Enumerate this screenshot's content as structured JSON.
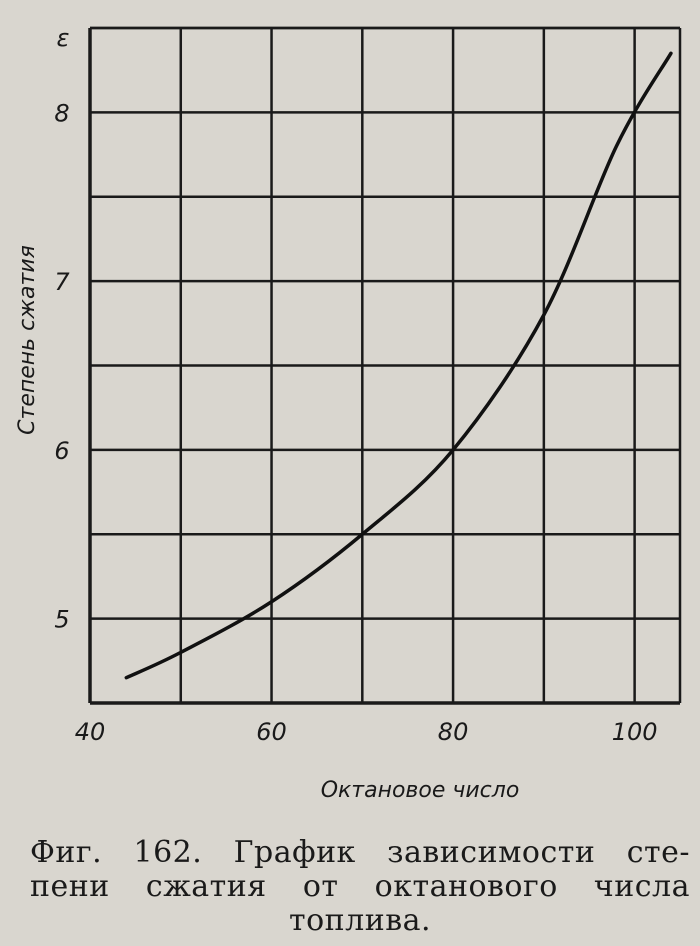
{
  "chart_data": {
    "type": "line",
    "xlabel": "Октановое число",
    "ylabel": "Степень сжатия",
    "y_axis_symbol": "ε",
    "xlim": [
      40,
      105
    ],
    "ylim": [
      4.5,
      8.5
    ],
    "x_grid_step": 10,
    "y_grid_step": 0.5,
    "grid": true,
    "x_ticks": [
      {
        "value": 40,
        "label": "40"
      },
      {
        "value": 60,
        "label": "60"
      },
      {
        "value": 80,
        "label": "80"
      },
      {
        "value": 100,
        "label": "100"
      }
    ],
    "y_ticks": [
      {
        "value": 5,
        "label": "5"
      },
      {
        "value": 6,
        "label": "6"
      },
      {
        "value": 7,
        "label": "7"
      },
      {
        "value": 8,
        "label": "8"
      }
    ],
    "series": [
      {
        "x": [
          44,
          50,
          60,
          70,
          80,
          90,
          98,
          104
        ],
        "y": [
          4.65,
          4.8,
          5.1,
          5.5,
          6.0,
          6.8,
          7.8,
          8.35
        ]
      }
    ]
  },
  "caption": {
    "line1": "Фиг. 162. График зависимости сте-",
    "line2": "пени сжатия от октанового числа",
    "line3": "топлива."
  }
}
